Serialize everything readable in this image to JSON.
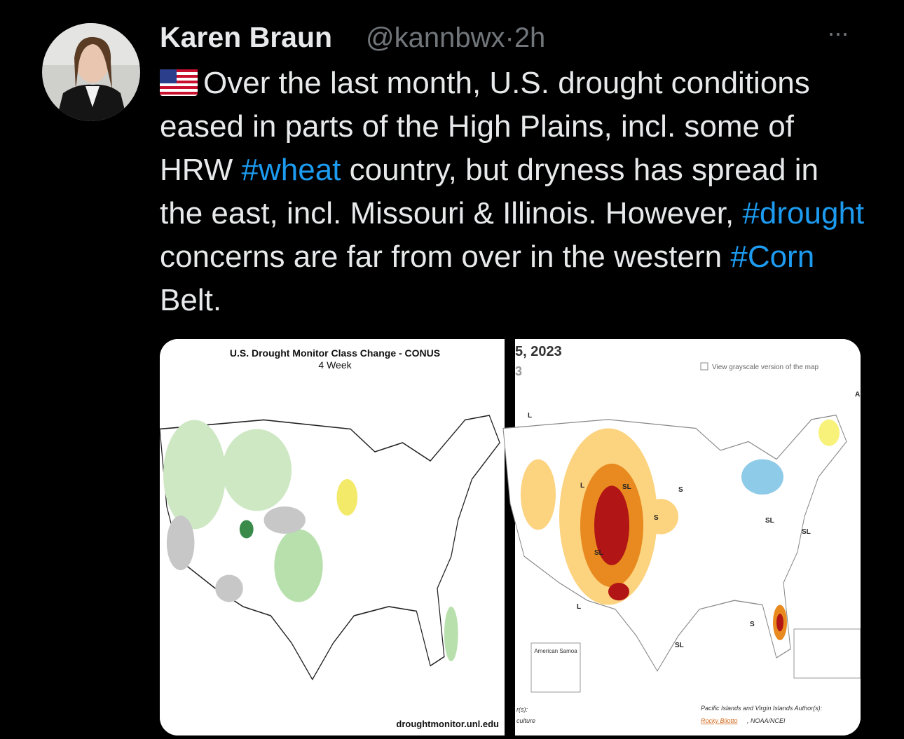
{
  "author": {
    "name": "Karen Braun",
    "handle": "@kannbwx",
    "separator": "·",
    "time": "2h"
  },
  "menu": "···",
  "tweet": {
    "text": [
      "Over the last month, U.S. drought conditions eased in parts of the High Plains, incl. some of HRW ",
      "#wheat",
      " country, but dryness has spread in the east, incl. Missouri & Illinois. However, ",
      "#drought",
      " concerns are far from over in the western ",
      "#Corn",
      " Belt."
    ]
  },
  "images": [
    {
      "title": "U.S. Drought Monitor Class Change - CONUS",
      "subtitle": "4 Week",
      "source": "droughtmonitor.unl.edu"
    },
    {
      "date": "5, 2023",
      "date_sub": "3",
      "checkbox_label": "View grayscale version of the map",
      "inset_label": "American Samoa",
      "footer_left": [
        "r(s):",
        "culture"
      ],
      "footer_right": "Pacific Islands and Virgin Islands Author(s):",
      "author_link": "Rocky Bilotto",
      "author_org": ", NOAA/NCEI",
      "map_labels": [
        "L",
        "L",
        "SL",
        "S",
        "SL",
        "S",
        "SL",
        "SL",
        "L",
        "S",
        "SL",
        "A"
      ]
    }
  ]
}
